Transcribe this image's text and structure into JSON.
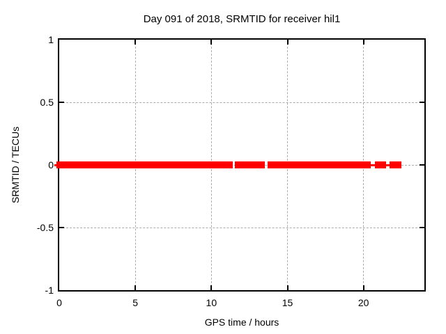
{
  "chart_data": {
    "type": "scatter",
    "title": "Day 091 of 2018, SRMTID for receiver hil1",
    "xlabel": "GPS time / hours",
    "ylabel": "SRMTID / TECUs",
    "xlim": [
      0,
      24
    ],
    "ylim": [
      -1,
      1
    ],
    "xtick_values": [
      0,
      5,
      10,
      15,
      20
    ],
    "xtick_labels": [
      "0",
      "5",
      "10",
      "15",
      "20"
    ],
    "ytick_values": [
      -1,
      -0.5,
      0,
      0.5,
      1
    ],
    "ytick_labels": [
      "-1",
      "-0.5",
      "0",
      "0.5",
      "1"
    ],
    "grid": true,
    "legend": "none",
    "colors": {
      "series": "#ff0000",
      "grid": "#ababab",
      "axis": "#000000",
      "background": "#ffffff",
      "text": "#000000"
    },
    "series": [
      {
        "name": "SRMTID",
        "color": "#ff0000",
        "marker": "filled-square",
        "marker_size_px": 10,
        "y_value": 0,
        "band_segments_hours": [
          {
            "start": -0.3,
            "end": 0,
            "style": "thin"
          },
          {
            "start": -0.2,
            "end": 11.4,
            "style": "thick"
          },
          {
            "start": 11.52,
            "end": 13.5,
            "style": "thick"
          },
          {
            "start": 13.7,
            "end": 20.47,
            "style": "thick"
          },
          {
            "start": 20.47,
            "end": 20.75,
            "style": "thin"
          },
          {
            "start": 20.75,
            "end": 21.5,
            "style": "thick"
          },
          {
            "start": 21.5,
            "end": 21.71,
            "style": "thin"
          },
          {
            "start": 21.71,
            "end": 22.51,
            "style": "thick"
          }
        ]
      }
    ]
  }
}
